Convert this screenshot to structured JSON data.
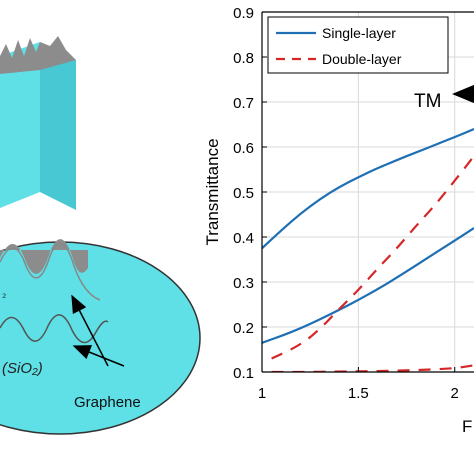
{
  "left_panel": {
    "labels": [
      {
        "id": "sio2-inner",
        "text": "(SiO₂)"
      },
      {
        "id": "sio2-edge",
        "text": "₂"
      },
      {
        "id": "graphene",
        "text": "Graphene"
      }
    ],
    "colors": {
      "cyan": "#5fdfe6",
      "cyan_dark": "#38b9c4",
      "graphene_gray": "#8c8c8c"
    }
  },
  "chart_data": {
    "type": "line",
    "ylabel": "Transmittance",
    "xlabel_partial": "F",
    "xlim": [
      1,
      2.1
    ],
    "ylim": [
      0.1,
      0.9
    ],
    "x_ticks": [
      1,
      1.5,
      2
    ],
    "x_tick_labels": [
      "1",
      "1.5",
      "2"
    ],
    "y_ticks": [
      0.1,
      0.2,
      0.3,
      0.4,
      0.5,
      0.6,
      0.7,
      0.8,
      0.9
    ],
    "y_tick_labels": [
      "0.1",
      "0.2",
      "0.3",
      "0.4",
      "0.5",
      "0.6",
      "0.7",
      "0.8",
      "0.9"
    ],
    "grid": true,
    "legend": {
      "placement": "top-left",
      "entries": [
        {
          "label": "Single-layer",
          "color": "#1f6fb5",
          "style": "solid"
        },
        {
          "label": "Double-layer",
          "color": "#d62728",
          "style": "dashed"
        }
      ]
    },
    "annotation": {
      "text": "TM",
      "arrow_target": [
        2.0,
        0.7
      ]
    },
    "series": [
      {
        "ref": "single-upper",
        "color": "#1f6fb5",
        "style": "solid",
        "x": [
          1.0,
          1.1,
          1.2,
          1.3,
          1.4,
          1.5,
          1.6,
          1.7,
          1.8,
          1.9,
          2.0,
          2.1
        ],
        "y": [
          0.375,
          0.415,
          0.452,
          0.484,
          0.511,
          0.533,
          0.553,
          0.571,
          0.588,
          0.605,
          0.622,
          0.64
        ]
      },
      {
        "ref": "single-lower",
        "color": "#1f6fb5",
        "style": "solid",
        "x": [
          1.0,
          1.1,
          1.2,
          1.3,
          1.4,
          1.5,
          1.6,
          1.7,
          1.8,
          1.9,
          2.0,
          2.1
        ],
        "y": [
          0.165,
          0.18,
          0.197,
          0.217,
          0.238,
          0.26,
          0.284,
          0.31,
          0.337,
          0.365,
          0.392,
          0.42
        ]
      },
      {
        "ref": "double-upper",
        "color": "#d62728",
        "style": "dashed",
        "x": [
          1.05,
          1.2,
          1.3,
          1.4,
          1.5,
          1.6,
          1.7,
          1.8,
          1.9,
          2.0,
          2.1
        ],
        "y": [
          0.13,
          0.16,
          0.195,
          0.24,
          0.282,
          0.33,
          0.375,
          0.425,
          0.472,
          0.525,
          0.58
        ]
      },
      {
        "ref": "double-lower",
        "color": "#d62728",
        "style": "dashed",
        "x": [
          1.05,
          1.2,
          1.4,
          1.6,
          1.8,
          2.0,
          2.1
        ],
        "y": [
          0.1,
          0.1,
          0.101,
          0.102,
          0.104,
          0.108,
          0.115
        ]
      }
    ]
  }
}
